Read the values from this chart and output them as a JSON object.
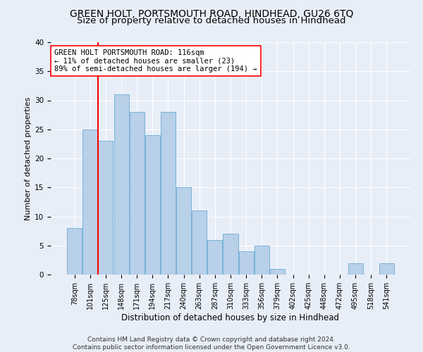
{
  "title": "GREEN HOLT, PORTSMOUTH ROAD, HINDHEAD, GU26 6TQ",
  "subtitle": "Size of property relative to detached houses in Hindhead",
  "xlabel": "Distribution of detached houses by size in Hindhead",
  "ylabel": "Number of detached properties",
  "categories": [
    "78sqm",
    "101sqm",
    "125sqm",
    "148sqm",
    "171sqm",
    "194sqm",
    "217sqm",
    "240sqm",
    "263sqm",
    "287sqm",
    "310sqm",
    "333sqm",
    "356sqm",
    "379sqm",
    "402sqm",
    "425sqm",
    "448sqm",
    "472sqm",
    "495sqm",
    "518sqm",
    "541sqm"
  ],
  "values": [
    8,
    25,
    23,
    31,
    28,
    24,
    28,
    15,
    11,
    6,
    7,
    4,
    5,
    1,
    0,
    0,
    0,
    0,
    2,
    0,
    2
  ],
  "bar_color": "#b8d0e8",
  "bar_edge_color": "#6aaad4",
  "red_line_x": 1.5,
  "annotation_text": "GREEN HOLT PORTSMOUTH ROAD: 116sqm\n← 11% of detached houses are smaller (23)\n89% of semi-detached houses are larger (194) →",
  "footer_line1": "Contains HM Land Registry data © Crown copyright and database right 2024.",
  "footer_line2": "Contains public sector information licensed under the Open Government Licence v3.0.",
  "ylim": [
    0,
    40
  ],
  "yticks": [
    0,
    5,
    10,
    15,
    20,
    25,
    30,
    35,
    40
  ],
  "bg_color": "#e8eef8",
  "plot_bg_color": "#e8eef8",
  "grid_color": "#ffffff",
  "title_fontsize": 10,
  "subtitle_fontsize": 9.5,
  "ylabel_fontsize": 8,
  "xlabel_fontsize": 8.5,
  "tick_fontsize": 7,
  "footer_fontsize": 6.5,
  "ann_fontsize": 7.5
}
